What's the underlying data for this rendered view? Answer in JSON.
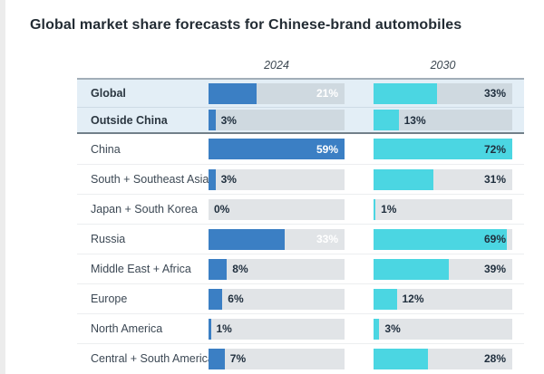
{
  "title": "Global market share forecasts for Chinese-brand automobiles",
  "colors": {
    "bar_2024": "#3b7fc4",
    "bar_2030": "#4bd6e2",
    "track": "#e1e4e7",
    "track_hl": "#cfd9e0",
    "row_hl_bg": "#e3eef6",
    "top_border": "#a2aeb8",
    "section_border": "#72808a",
    "row_divider": "#eceef0",
    "row_divider_hl": "#cddbe5",
    "value_dark": "#1f2e3d",
    "value_light": "#ffffff",
    "title_color": "#232c34",
    "year_color": "#3d4852",
    "label_color": "#3c4854"
  },
  "chart_data": {
    "type": "bar",
    "title": "Global market share forecasts for Chinese-brand automobiles",
    "unit": "%",
    "categories": [
      "Global",
      "Outside China",
      "China",
      "South + Southeast Asia",
      "Japan + South Korea",
      "Russia",
      "Middle East + Africa",
      "Europe",
      "North America",
      "Central + South America"
    ],
    "series": [
      {
        "name": "2024",
        "values": [
          21,
          3,
          59,
          3,
          0,
          33,
          8,
          6,
          1,
          7
        ],
        "scale_max": 59
      },
      {
        "name": "2030",
        "values": [
          33,
          13,
          72,
          31,
          1,
          69,
          39,
          12,
          3,
          28
        ],
        "scale_max": 72
      }
    ],
    "highlighted_categories": [
      "Global",
      "Outside China"
    ],
    "value_label_format": "{v}%",
    "layout": {
      "legend_position": "column-headers",
      "grid": "off",
      "bar_scale": "relative-to-column-max"
    }
  }
}
